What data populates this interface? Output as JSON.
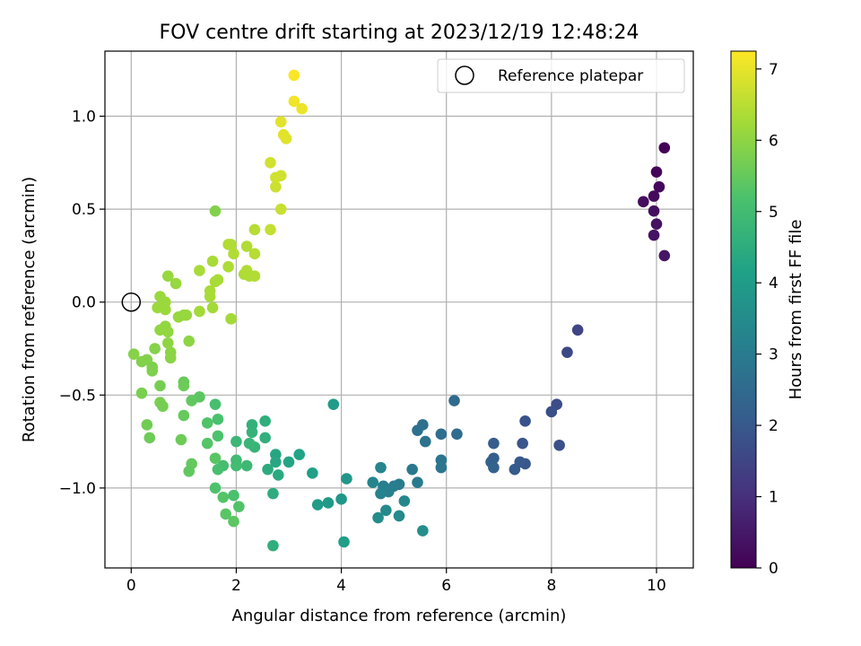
{
  "chart_data": {
    "type": "scatter",
    "title": "FOV centre drift starting at 2023/12/19 12:48:24",
    "xlabel": "Angular distance from reference (arcmin)",
    "ylabel": "Rotation from reference (arcmin)",
    "xlim": [
      -0.5,
      10.7
    ],
    "ylim": [
      -1.43,
      1.35
    ],
    "xticks": [
      0,
      2,
      4,
      6,
      8,
      10
    ],
    "xtick_labels": [
      "0",
      "2",
      "4",
      "6",
      "8",
      "10"
    ],
    "yticks": [
      -1.0,
      -0.5,
      0.0,
      0.5,
      1.0
    ],
    "ytick_labels": [
      "−1.0",
      "−0.5",
      "0.0",
      "0.5",
      "1.0"
    ],
    "grid": true,
    "colormap": "viridis",
    "colorbar": {
      "label": "Hours from first FF file",
      "range": [
        0,
        7.25
      ],
      "ticks": [
        0,
        1,
        2,
        3,
        4,
        5,
        6,
        7
      ],
      "tick_labels": [
        "0",
        "1",
        "2",
        "3",
        "4",
        "5",
        "6",
        "7"
      ]
    },
    "legend": {
      "position": "top-right",
      "entries": [
        "Reference platepar"
      ]
    },
    "reference_point": {
      "x": 0,
      "y": 0
    },
    "points": [
      [
        10.15,
        0.83,
        0.05
      ],
      [
        10.0,
        0.7,
        0.1
      ],
      [
        10.05,
        0.62,
        0.15
      ],
      [
        9.95,
        0.57,
        0.2
      ],
      [
        9.75,
        0.54,
        0.25
      ],
      [
        9.95,
        0.49,
        0.3
      ],
      [
        10.0,
        0.42,
        0.35
      ],
      [
        9.95,
        0.36,
        0.4
      ],
      [
        10.15,
        0.25,
        0.45
      ],
      [
        8.5,
        -0.15,
        1.5
      ],
      [
        8.3,
        -0.27,
        1.6
      ],
      [
        8.1,
        -0.55,
        1.7
      ],
      [
        8.0,
        -0.59,
        1.75
      ],
      [
        8.15,
        -0.77,
        1.8
      ],
      [
        7.5,
        -0.64,
        1.85
      ],
      [
        7.45,
        -0.76,
        1.9
      ],
      [
        7.5,
        -0.87,
        1.95
      ],
      [
        7.4,
        -0.86,
        2.0
      ],
      [
        7.3,
        -0.9,
        2.05
      ],
      [
        6.9,
        -0.76,
        2.1
      ],
      [
        6.9,
        -0.84,
        2.15
      ],
      [
        6.85,
        -0.86,
        2.2
      ],
      [
        6.9,
        -0.89,
        2.25
      ],
      [
        6.15,
        -0.53,
        2.5
      ],
      [
        6.2,
        -0.71,
        2.55
      ],
      [
        5.9,
        -0.71,
        2.6
      ],
      [
        5.55,
        -0.66,
        2.65
      ],
      [
        5.45,
        -0.69,
        2.7
      ],
      [
        5.6,
        -0.75,
        2.75
      ],
      [
        5.9,
        -0.85,
        2.8
      ],
      [
        5.9,
        -0.89,
        2.85
      ],
      [
        5.35,
        -0.9,
        2.9
      ],
      [
        5.45,
        -0.97,
        2.95
      ],
      [
        5.1,
        -0.98,
        3.0
      ],
      [
        5.0,
        -0.99,
        3.05
      ],
      [
        4.8,
        -0.99,
        3.1
      ],
      [
        4.9,
        -1.02,
        3.15
      ],
      [
        4.75,
        -1.03,
        3.2
      ],
      [
        4.6,
        -0.97,
        3.25
      ],
      [
        4.75,
        -0.89,
        3.3
      ],
      [
        5.2,
        -1.07,
        3.35
      ],
      [
        4.85,
        -1.12,
        3.4
      ],
      [
        5.1,
        -1.15,
        3.45
      ],
      [
        4.7,
        -1.16,
        3.5
      ],
      [
        5.55,
        -1.23,
        3.55
      ],
      [
        4.1,
        -0.95,
        3.8
      ],
      [
        4.0,
        -1.06,
        3.85
      ],
      [
        3.75,
        -1.08,
        3.9
      ],
      [
        3.55,
        -1.09,
        3.95
      ],
      [
        3.85,
        -0.55,
        4.0
      ],
      [
        4.05,
        -1.29,
        4.05
      ],
      [
        3.45,
        -0.92,
        4.1
      ],
      [
        3.2,
        -0.82,
        4.2
      ],
      [
        3.0,
        -0.86,
        4.25
      ],
      [
        2.75,
        -0.82,
        4.3
      ],
      [
        2.75,
        -0.86,
        4.35
      ],
      [
        2.8,
        -0.93,
        4.4
      ],
      [
        2.6,
        -0.9,
        4.45
      ],
      [
        2.7,
        -1.03,
        4.5
      ],
      [
        2.55,
        -0.64,
        4.55
      ],
      [
        2.55,
        -0.73,
        4.6
      ],
      [
        2.3,
        -0.66,
        4.65
      ],
      [
        2.3,
        -0.7,
        4.7
      ],
      [
        2.35,
        -0.78,
        4.75
      ],
      [
        2.25,
        -0.76,
        4.8
      ],
      [
        2.0,
        -0.75,
        4.85
      ],
      [
        2.2,
        -0.88,
        4.9
      ],
      [
        2.0,
        -0.85,
        4.95
      ],
      [
        2.0,
        -0.88,
        5.0
      ],
      [
        1.75,
        -0.88,
        5.05
      ],
      [
        1.65,
        -0.9,
        5.1
      ],
      [
        1.95,
        -1.04,
        5.15
      ],
      [
        1.6,
        -1.0,
        5.2
      ],
      [
        2.05,
        -1.1,
        5.25
      ],
      [
        1.75,
        -1.05,
        5.3
      ],
      [
        1.8,
        -1.14,
        5.35
      ],
      [
        1.95,
        -1.18,
        5.4
      ],
      [
        2.7,
        -1.31,
        4.55
      ],
      [
        1.6,
        -0.55,
        5.1
      ],
      [
        1.65,
        -0.63,
        5.15
      ],
      [
        1.65,
        -0.72,
        5.2
      ],
      [
        1.45,
        -0.65,
        5.25
      ],
      [
        1.45,
        -0.76,
        5.3
      ],
      [
        1.6,
        -0.84,
        5.35
      ],
      [
        1.3,
        -0.51,
        5.4
      ],
      [
        1.15,
        -0.53,
        5.45
      ],
      [
        1.0,
        -0.61,
        5.5
      ],
      [
        1.0,
        -0.43,
        5.55
      ],
      [
        1.0,
        -0.45,
        5.6
      ],
      [
        1.15,
        -0.87,
        5.5
      ],
      [
        1.1,
        -0.91,
        5.45
      ],
      [
        0.95,
        -0.74,
        5.6
      ],
      [
        0.55,
        -0.45,
        5.7
      ],
      [
        0.55,
        -0.54,
        5.75
      ],
      [
        0.6,
        -0.56,
        5.7
      ],
      [
        0.3,
        -0.66,
        5.65
      ],
      [
        0.35,
        -0.73,
        5.6
      ],
      [
        0.2,
        -0.49,
        5.75
      ],
      [
        0.4,
        -0.35,
        5.8
      ],
      [
        0.4,
        -0.37,
        5.8
      ],
      [
        0.3,
        -0.31,
        5.85
      ],
      [
        0.2,
        -0.32,
        5.85
      ],
      [
        0.05,
        -0.28,
        5.9
      ],
      [
        0.45,
        -0.25,
        5.9
      ],
      [
        0.75,
        -0.27,
        5.95
      ],
      [
        0.75,
        -0.3,
        5.95
      ],
      [
        0.7,
        -0.22,
        6.0
      ],
      [
        1.1,
        -0.21,
        6.0
      ],
      [
        0.55,
        -0.15,
        6.05
      ],
      [
        0.65,
        -0.13,
        6.05
      ],
      [
        0.7,
        -0.16,
        6.05
      ],
      [
        0.9,
        -0.08,
        6.1
      ],
      [
        1.0,
        -0.07,
        6.1
      ],
      [
        1.05,
        -0.07,
        6.1
      ],
      [
        0.5,
        -0.03,
        6.15
      ],
      [
        0.65,
        -0.04,
        6.15
      ],
      [
        0.55,
        0.03,
        6.15
      ],
      [
        0.7,
        0.14,
        6.1
      ],
      [
        0.85,
        0.1,
        6.1
      ],
      [
        0.65,
        0.0,
        6.15
      ],
      [
        1.3,
        -0.05,
        6.25
      ],
      [
        1.55,
        -0.03,
        6.25
      ],
      [
        1.9,
        -0.09,
        6.25
      ],
      [
        1.5,
        0.03,
        6.3
      ],
      [
        1.5,
        0.06,
        6.3
      ],
      [
        1.6,
        0.11,
        6.3
      ],
      [
        1.65,
        0.12,
        6.3
      ],
      [
        1.3,
        0.17,
        6.3
      ],
      [
        1.55,
        0.22,
        6.3
      ],
      [
        1.6,
        0.49,
        5.85
      ],
      [
        1.85,
        0.19,
        6.35
      ],
      [
        2.15,
        0.15,
        6.35
      ],
      [
        2.25,
        0.14,
        6.4
      ],
      [
        2.35,
        0.14,
        6.4
      ],
      [
        2.2,
        0.17,
        6.4
      ],
      [
        1.95,
        0.26,
        6.4
      ],
      [
        2.2,
        0.3,
        6.4
      ],
      [
        2.35,
        0.26,
        6.45
      ],
      [
        1.85,
        0.31,
        6.4
      ],
      [
        1.9,
        0.31,
        6.4
      ],
      [
        2.35,
        0.39,
        6.45
      ],
      [
        2.65,
        0.39,
        6.6
      ],
      [
        2.85,
        0.5,
        6.65
      ],
      [
        2.75,
        0.62,
        6.7
      ],
      [
        2.75,
        0.67,
        6.75
      ],
      [
        2.85,
        0.68,
        6.75
      ],
      [
        2.65,
        0.75,
        6.75
      ],
      [
        2.95,
        0.88,
        6.9
      ],
      [
        2.9,
        0.9,
        6.95
      ],
      [
        2.85,
        0.97,
        6.95
      ],
      [
        3.25,
        1.04,
        7.05
      ],
      [
        3.1,
        1.08,
        7.1
      ],
      [
        3.1,
        1.22,
        7.2
      ]
    ]
  }
}
